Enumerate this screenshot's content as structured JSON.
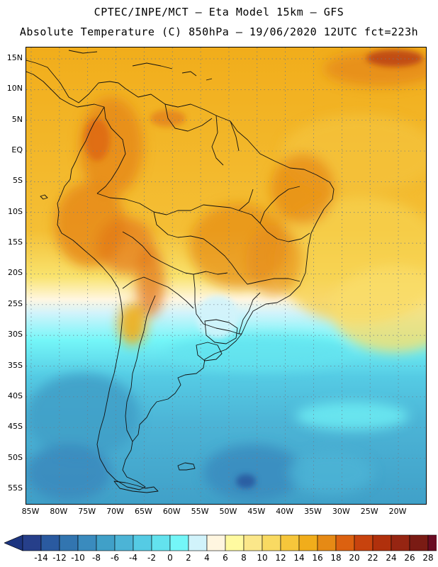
{
  "header": {
    "title_line1": "CPTEC/INPE/MCT –  Eta Model 15km – GFS",
    "title_line2": "Absolute Temperature (C) 850hPa – 19/06/2020 12UTC fct=223h"
  },
  "map": {
    "lat_labels": [
      "15N",
      "10N",
      "5N",
      "EQ",
      "5S",
      "10S",
      "15S",
      "20S",
      "25S",
      "30S",
      "35S",
      "40S",
      "45S",
      "50S",
      "55S"
    ],
    "lon_labels": [
      "85W",
      "80W",
      "75W",
      "70W",
      "65W",
      "60W",
      "55W",
      "50W",
      "45W",
      "40W",
      "35W",
      "30W",
      "25W",
      "20W"
    ],
    "colors": {
      "ocean_warm": "#f1ad1b",
      "ocean_cold": "#4cb4d6",
      "land_outline": "#111111",
      "grid": "#6b7b8c"
    }
  },
  "colorbar": {
    "labels": [
      "-14",
      "-12",
      "-10",
      "-8",
      "-6",
      "-4",
      "-2",
      "0",
      "2",
      "4",
      "6",
      "8",
      "10",
      "12",
      "14",
      "16",
      "18",
      "20",
      "22",
      "24",
      "26",
      "28"
    ],
    "colors": [
      "#263f8a",
      "#2a5aa0",
      "#3275b0",
      "#3a8bbe",
      "#40a0c8",
      "#4cb4d6",
      "#55cbe4",
      "#63e2ee",
      "#74f6f8",
      "#d1f3fb",
      "#fff6e0",
      "#fffaa0",
      "#fbe78a",
      "#f9da62",
      "#f6c63b",
      "#f1ad1b",
      "#e68a15",
      "#dc6110",
      "#c8430e",
      "#b0300c",
      "#962512",
      "#7a1b14",
      "#6a0b22"
    ],
    "under_color": "#1d3580",
    "over_color": "#6a0b22"
  }
}
